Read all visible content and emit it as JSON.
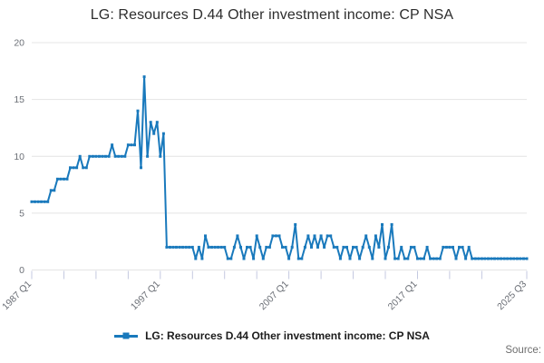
{
  "title": "LG: Resources D.44 Other investment income: CP NSA",
  "legend": {
    "label": "LG: Resources D.44 Other investment income: CP NSA",
    "marker_icon": "line-with-square-marker-icon"
  },
  "source_label": "Source:",
  "chart_data": {
    "type": "line",
    "title": "LG: Resources D.44 Other investment income: CP NSA",
    "x_unit": "quarter",
    "x_start": "1987 Q1",
    "x_end": "2025 Q3",
    "series": [
      {
        "name": "LG: Resources D.44 Other investment income: CP NSA",
        "values": [
          6,
          6,
          6,
          6,
          6,
          6,
          7,
          7,
          8,
          8,
          8,
          8,
          9,
          9,
          9,
          10,
          9,
          9,
          10,
          10,
          10,
          10,
          10,
          10,
          10,
          11,
          10,
          10,
          10,
          10,
          11,
          11,
          11,
          14,
          9,
          17,
          10,
          13,
          12,
          13,
          10,
          12,
          2,
          2,
          2,
          2,
          2,
          2,
          2,
          2,
          2,
          1,
          2,
          1,
          3,
          2,
          2,
          2,
          2,
          2,
          2,
          1,
          1,
          2,
          3,
          2,
          1,
          2,
          2,
          1,
          3,
          2,
          1,
          2,
          2,
          3,
          3,
          3,
          2,
          2,
          1,
          2,
          4,
          1,
          1,
          2,
          3,
          2,
          3,
          2,
          3,
          2,
          3,
          3,
          2,
          2,
          1,
          2,
          2,
          1,
          2,
          2,
          1,
          2,
          3,
          2,
          1,
          3,
          2,
          4,
          1,
          2,
          4,
          1,
          1,
          2,
          1,
          1,
          2,
          2,
          1,
          1,
          1,
          2,
          1,
          1,
          1,
          1,
          2,
          2,
          2,
          2,
          1,
          2,
          2,
          1,
          2,
          1,
          1,
          1,
          1,
          1,
          1,
          1,
          1,
          1,
          1,
          1,
          1,
          1,
          1,
          1,
          1,
          1,
          1
        ]
      }
    ],
    "xtick_indices": [
      0,
      10,
      20,
      30,
      40,
      50,
      60,
      70,
      80,
      90,
      100,
      110,
      120,
      130,
      140,
      154
    ],
    "xlabels": [
      {
        "index": 0,
        "label": "1987 Q1"
      },
      {
        "index": 40,
        "label": "1997 Q1"
      },
      {
        "index": 80,
        "label": "2007 Q1"
      },
      {
        "index": 120,
        "label": "2017 Q1"
      },
      {
        "index": 154,
        "label": "2025 Q3"
      }
    ],
    "ylim": [
      0,
      20
    ],
    "yticks": [
      0,
      5,
      10,
      15,
      20
    ],
    "grid": "horizontal",
    "legend_position": "bottom",
    "colors": {
      "line": "#1979bc",
      "grid": "#e4e4e4",
      "tick": "#c4c9e0",
      "axis_text": "#6b6f76",
      "title_text": "#2d2d2d"
    }
  }
}
